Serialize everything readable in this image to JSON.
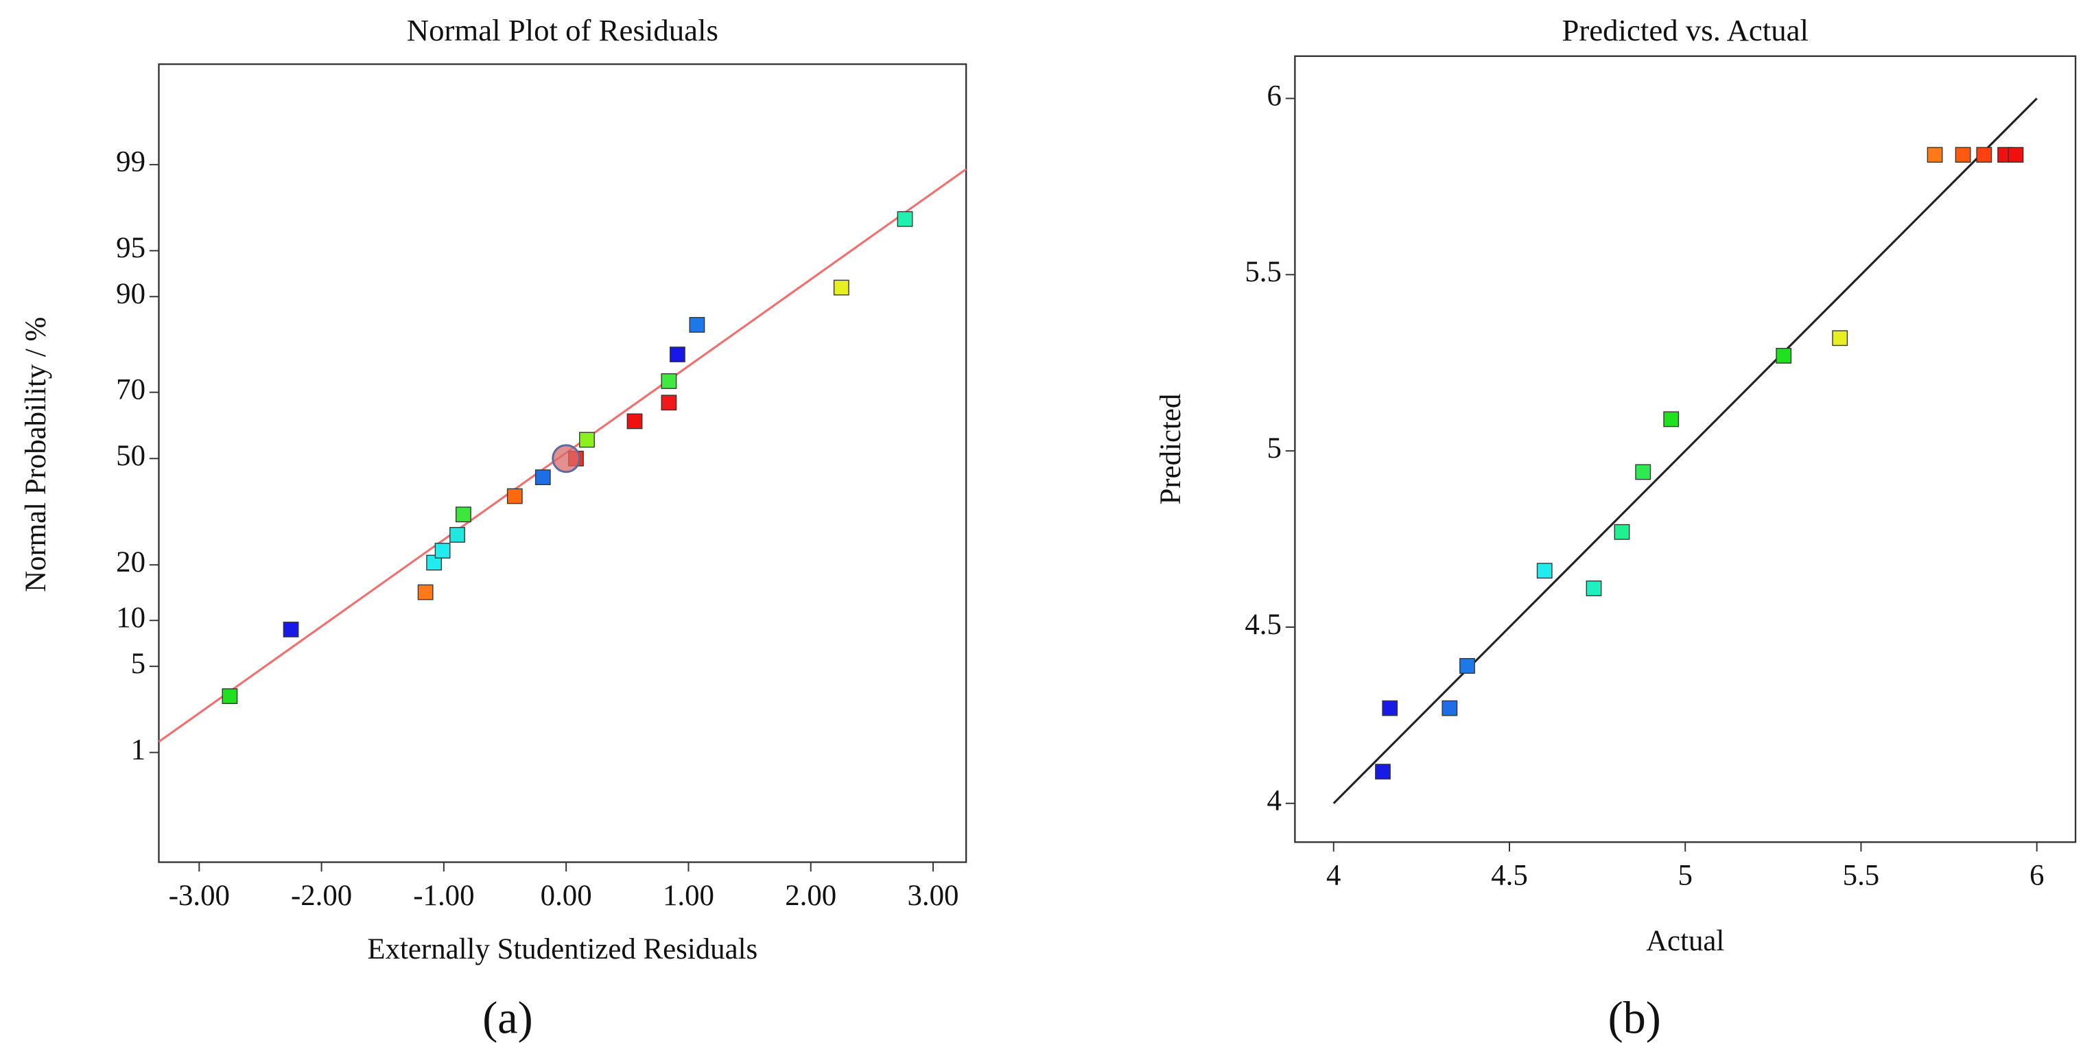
{
  "chart_data": [
    {
      "type": "scatter",
      "title": "Normal Plot of Residuals",
      "x_label": "Externally Studentized Residuals",
      "y_label": "Normal Probability / %",
      "panel_label": "(a)",
      "yscale": "probit",
      "xlim": [
        -3.33,
        3.27
      ],
      "ylim": [
        0.07,
        99.91
      ],
      "xticks": [
        {
          "value": -3,
          "label": "-3.00"
        },
        {
          "value": -2,
          "label": "-2.00"
        },
        {
          "value": -1,
          "label": "-1.00"
        },
        {
          "value": 0,
          "label": "0.00"
        },
        {
          "value": 1,
          "label": "1.00"
        },
        {
          "value": 2,
          "label": "2.00"
        },
        {
          "value": 3,
          "label": "3.00"
        }
      ],
      "yticks": [
        1,
        5,
        10,
        20,
        50,
        70,
        90,
        95,
        99
      ],
      "series": [
        {
          "marker": "square",
          "x": [
            -2.75,
            -2.25,
            -1.15,
            -1.08,
            -1.01,
            -0.89,
            -0.84,
            -0.42,
            -0.19,
            0.08,
            0.17,
            0.56,
            0.84,
            0.84,
            0.91,
            1.07,
            2.25,
            2.77
          ],
          "values": [
            3.0,
            8.8,
            14.5,
            20.5,
            23.3,
            27.3,
            32.9,
            38.3,
            44.1,
            50,
            55.9,
            61.6,
            67.1,
            73.0,
            79.5,
            85.5,
            91.2,
            97.1
          ],
          "colors": [
            "#20e020",
            "#1a1ae6",
            "#ff7a18",
            "#20ecf0",
            "#20ecf0",
            "#20e8e0",
            "#3ce63c",
            "#ff6a10",
            "#1e6ee8",
            "#ff2a10",
            "#8cf020",
            "#f01010",
            "#f01818",
            "#40e840",
            "#1818e6",
            "#1e78e8",
            "#e6f020",
            "#20f0b0"
          ]
        },
        {
          "marker": "circle",
          "x": [
            0
          ],
          "values": [
            50
          ],
          "colors": [
            "#d96b6b"
          ]
        }
      ],
      "fit_line": {
        "x": [
          -3.33,
          3.27
        ],
        "values": [
          1.25,
          98.9
        ],
        "color": "#f07070"
      }
    },
    {
      "type": "scatter",
      "title": "Predicted vs. Actual",
      "x_label": "Actual",
      "y_label": "Predicted",
      "panel_label": "(b)",
      "xlim": [
        3.89,
        6.11
      ],
      "ylim": [
        3.89,
        6.12
      ],
      "xticks": [
        4,
        4.5,
        5,
        5.5,
        6
      ],
      "yticks": [
        4,
        4.5,
        5,
        5.5,
        6
      ],
      "series": [
        {
          "marker": "square",
          "x": [
            4.14,
            4.16,
            4.33,
            4.38,
            4.6,
            4.74,
            4.82,
            4.88,
            4.96,
            5.28,
            5.44,
            5.71,
            5.79,
            5.85,
            5.91,
            5.94
          ],
          "values": [
            4.09,
            4.27,
            4.27,
            4.39,
            4.66,
            4.61,
            4.77,
            4.94,
            5.09,
            5.27,
            5.32,
            5.84,
            5.84,
            5.84,
            5.84,
            5.84
          ],
          "colors": [
            "#1a1ae6",
            "#1a1ae6",
            "#1e6ee8",
            "#1e78e8",
            "#20ecf0",
            "#20f0c0",
            "#20f090",
            "#30e850",
            "#20e020",
            "#20e020",
            "#e6f020",
            "#ff7a18",
            "#ff5a10",
            "#ff4010",
            "#f01010",
            "#f01010"
          ]
        }
      ],
      "fit_line": {
        "x": [
          4,
          6
        ],
        "values": [
          4,
          6
        ],
        "color": "#222222"
      }
    }
  ]
}
